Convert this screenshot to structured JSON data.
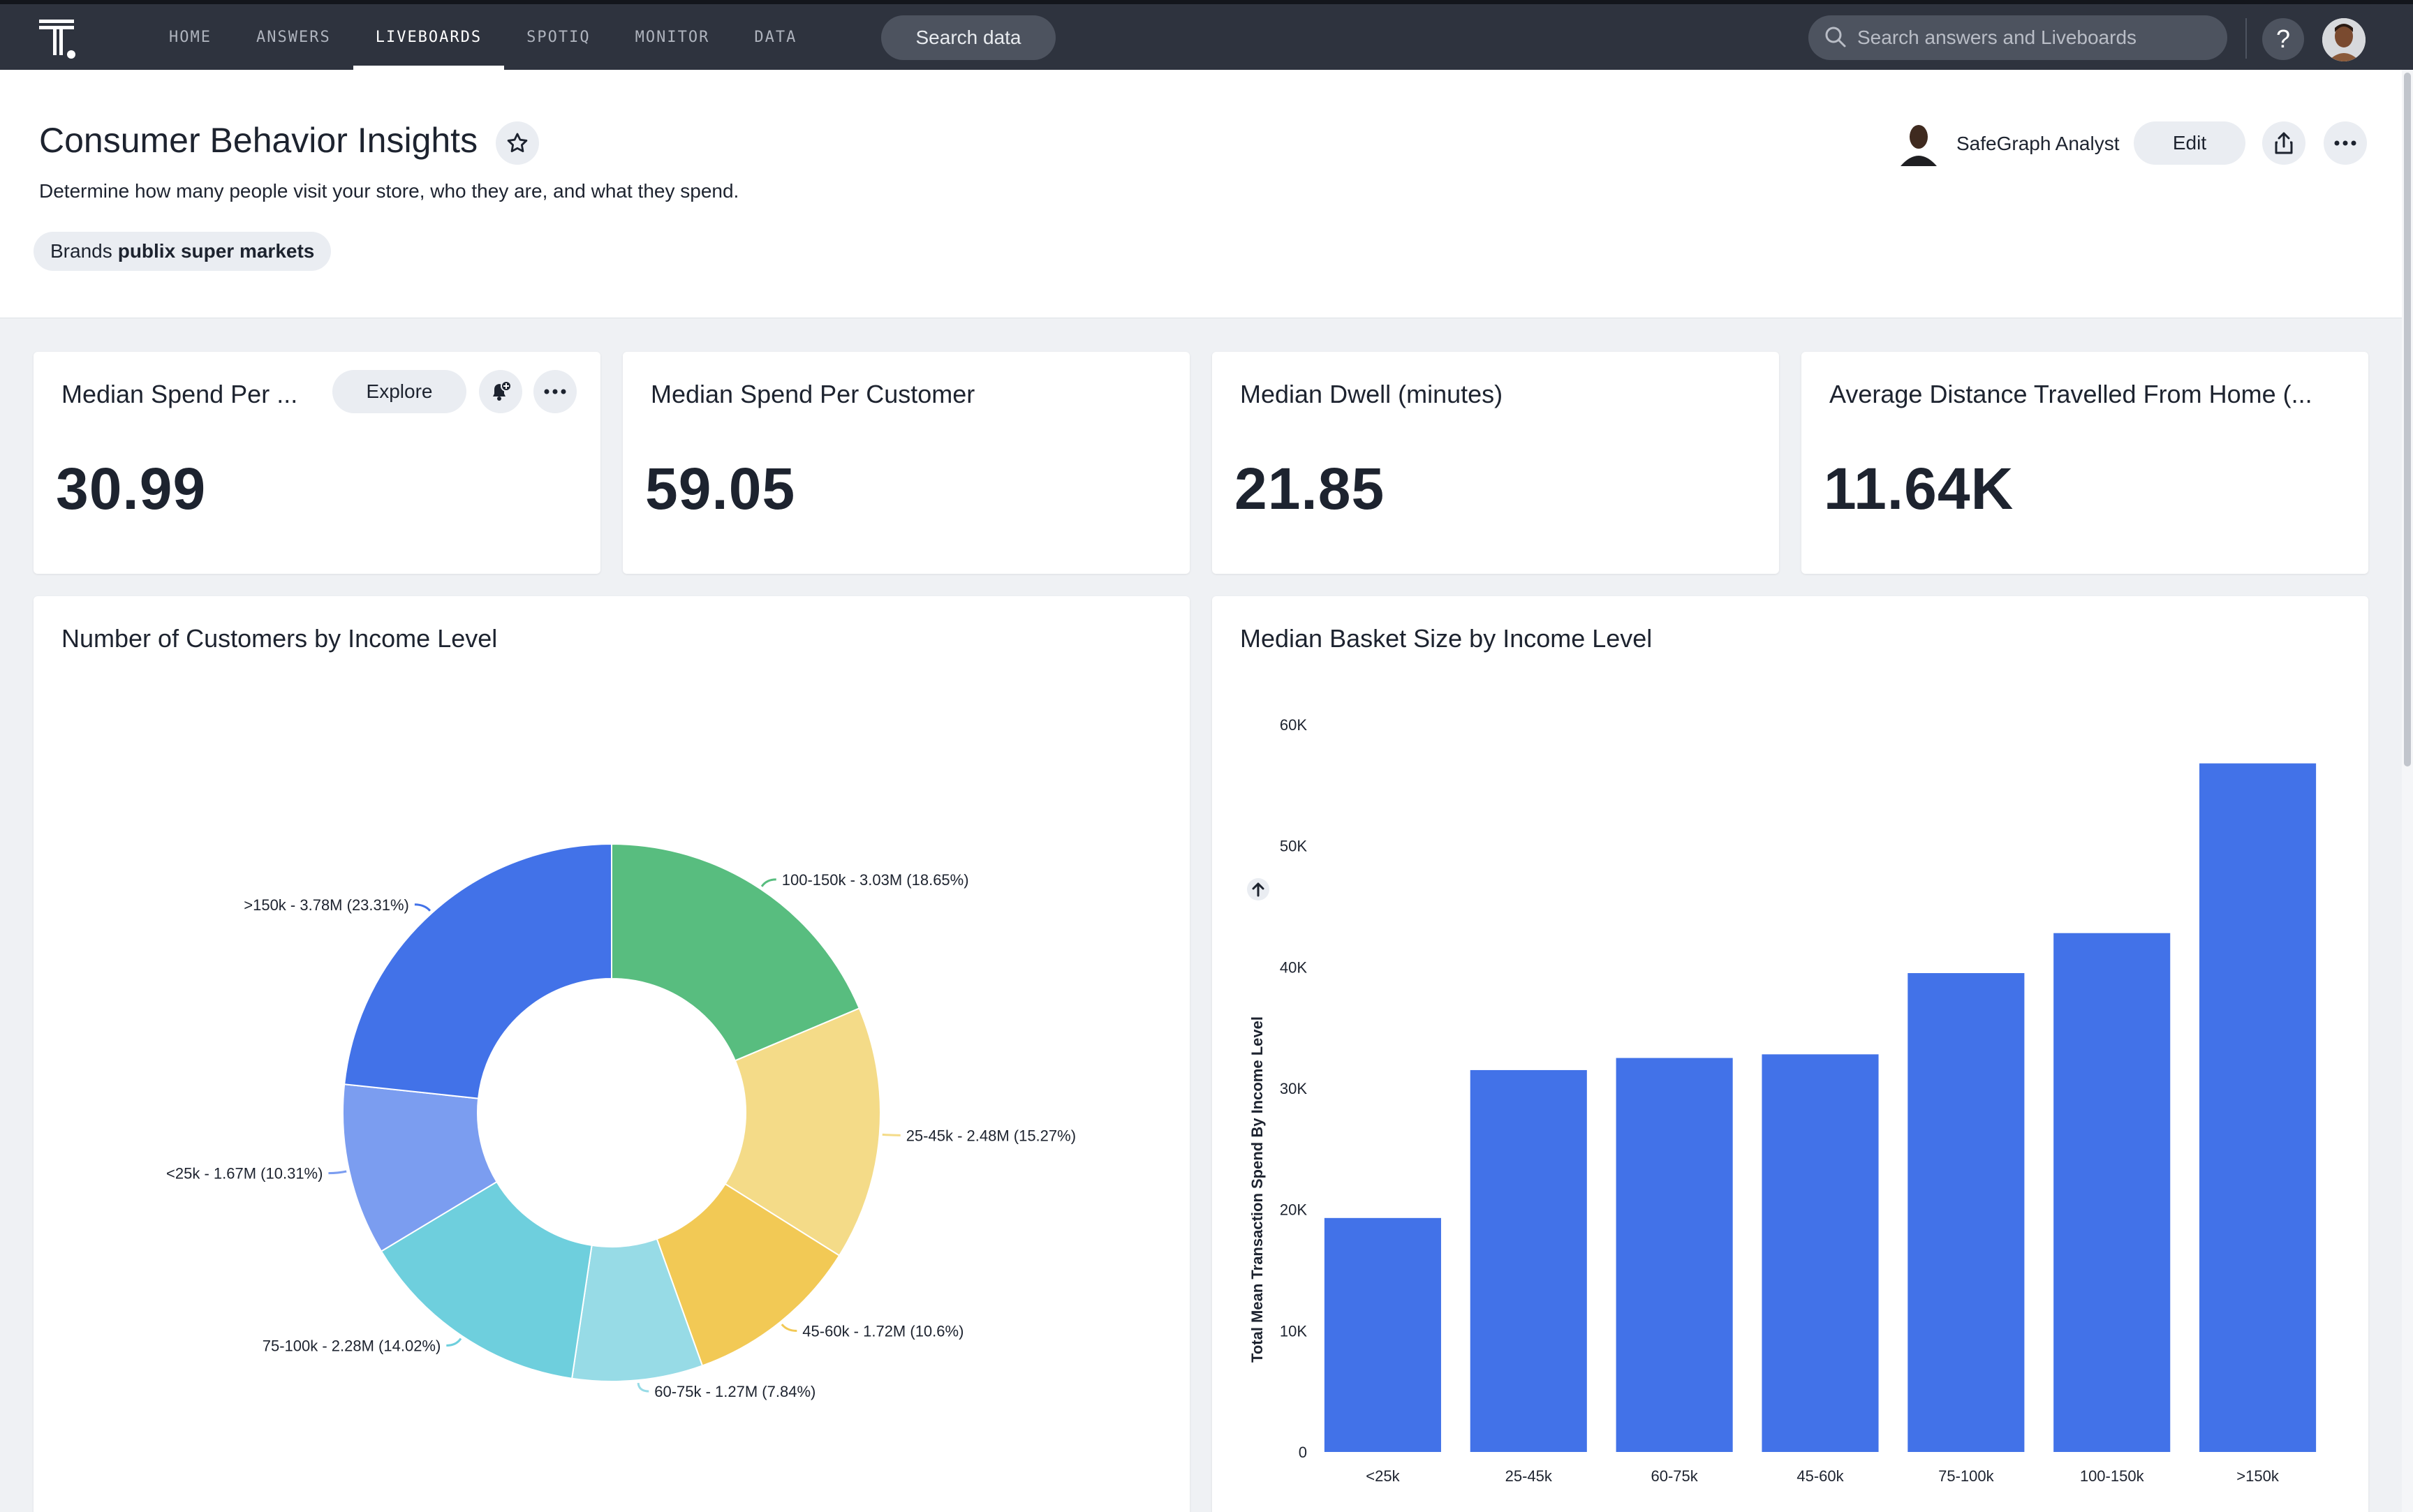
{
  "nav": {
    "items": [
      "HOME",
      "ANSWERS",
      "LIVEBOARDS",
      "SPOTIQ",
      "MONITOR",
      "DATA"
    ],
    "active": "LIVEBOARDS",
    "search_data_label": "Search data",
    "search_placeholder": "Search answers and Liveboards",
    "help_label": "?"
  },
  "liveboard": {
    "title": "Consumer Behavior Insights",
    "description": "Determine how many people visit your store, who they are, and what they spend.",
    "filter": {
      "label": "Brands",
      "value": "publix super markets"
    },
    "author": "SafeGraph Analyst",
    "edit_label": "Edit"
  },
  "kpis": [
    {
      "title": "Median Spend Per ...",
      "value": "30.99",
      "explore_label": "Explore"
    },
    {
      "title": "Median Spend Per Customer",
      "value": "59.05"
    },
    {
      "title": "Median Dwell (minutes)",
      "value": "21.85"
    },
    {
      "title": "Average Distance Travelled From Home (...",
      "value": "11.64K"
    }
  ],
  "chart_data": [
    {
      "type": "pie",
      "title": "Number of Customers by Income Level",
      "slices": [
        {
          "label": "100-150k - 3.03M (18.65%)",
          "category": "100-150k",
          "value": 3.03,
          "percent": 18.65,
          "color": "#58bd7f"
        },
        {
          "label": "25-45k - 2.48M (15.27%)",
          "category": "25-45k",
          "value": 2.48,
          "percent": 15.27,
          "color": "#f4db88"
        },
        {
          "label": "45-60k - 1.72M (10.6%)",
          "category": "45-60k",
          "value": 1.72,
          "percent": 10.6,
          "color": "#f2c955"
        },
        {
          "label": "60-75k - 1.27M (7.84%)",
          "category": "60-75k",
          "value": 1.27,
          "percent": 7.84,
          "color": "#97dbe6"
        },
        {
          "label": "75-100k - 2.28M (14.02%)",
          "category": "75-100k",
          "value": 2.28,
          "percent": 14.02,
          "color": "#6ecfdd"
        },
        {
          "label": "<25k - 1.67M (10.31%)",
          "category": "<25k",
          "value": 1.67,
          "percent": 10.31,
          "color": "#7b9df0"
        },
        {
          "label": ">150k - 3.78M (23.31%)",
          "category": ">150k",
          "value": 3.78,
          "percent": 23.31,
          "color": "#4272e8"
        }
      ],
      "donut": true
    },
    {
      "type": "bar",
      "title": "Median Basket Size by Income Level",
      "categories": [
        "<25k",
        "25-45k",
        "60-75k",
        "45-60k",
        "75-100k",
        "100-150k",
        ">150k"
      ],
      "values": [
        19300,
        31500,
        32500,
        32800,
        39500,
        42800,
        56800
      ],
      "ylabel": "Total Mean Transaction Spend By Income Level",
      "yticks": [
        "0",
        "10K",
        "20K",
        "30K",
        "40K",
        "50K",
        "60K"
      ],
      "ylim": [
        0,
        60000
      ],
      "color": "#4272e8",
      "grid": false
    }
  ]
}
